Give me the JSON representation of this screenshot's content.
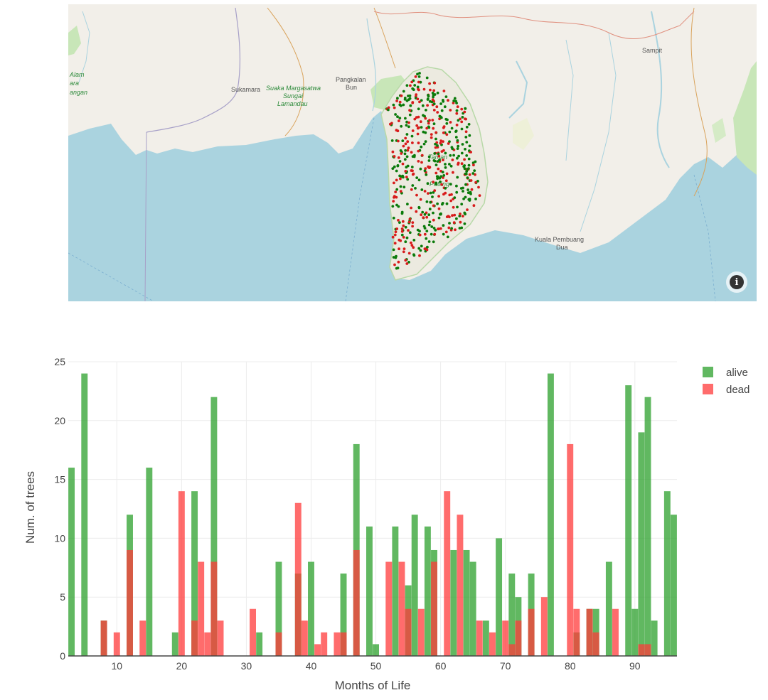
{
  "map": {
    "place_labels": [
      "Sukamara",
      "Pangkalan",
      "Bun",
      "Sampit",
      "Kuala Pembuang",
      "Dua",
      "Suaka Margasatwa",
      "Sungai",
      "Lamandau",
      "Alam",
      "ara",
      "angan",
      "Taman",
      "Putting"
    ],
    "info_icon": "info-icon",
    "point_colors": {
      "alive": "#0a7a0a",
      "dead": "#d81b1b"
    }
  },
  "chart_data": {
    "type": "bar",
    "barmode": "overlay",
    "xlabel": "Months of Life",
    "ylabel": "Num. of trees",
    "xlim": [
      2.5,
      96.5
    ],
    "ylim": [
      0,
      25
    ],
    "xticks": [
      10,
      20,
      30,
      40,
      50,
      60,
      70,
      80,
      90
    ],
    "yticks": [
      0,
      5,
      10,
      15,
      20,
      25
    ],
    "grid": true,
    "legend_position": "top-right",
    "series": [
      {
        "name": "alive",
        "color": "#2ca02c",
        "x": [
          3,
          5,
          8,
          12,
          15,
          19,
          22,
          25,
          32,
          35,
          38,
          40,
          45,
          47,
          49,
          50,
          53,
          55,
          56,
          58,
          59,
          62,
          64,
          65,
          67,
          69,
          71,
          72,
          74,
          77,
          81,
          83,
          84,
          86,
          88,
          89,
          90,
          91,
          92,
          93,
          95,
          96
        ],
        "values": [
          16,
          24,
          3,
          12,
          16,
          2,
          14,
          22,
          2,
          8,
          7,
          8,
          7,
          18,
          11,
          1,
          11,
          6,
          12,
          11,
          9,
          9,
          9,
          8,
          3,
          10,
          7,
          5,
          7,
          24,
          2,
          4,
          4,
          8,
          0,
          23,
          4,
          19,
          22,
          3,
          14,
          12
        ]
      },
      {
        "name": "dead",
        "color": "#ff3b3b",
        "x": [
          8,
          10,
          12,
          14,
          20,
          22,
          23,
          24,
          25,
          26,
          31,
          35,
          38,
          39,
          41,
          42,
          44,
          45,
          47,
          52,
          54,
          55,
          57,
          59,
          61,
          63,
          66,
          68,
          70,
          71,
          72,
          74,
          76,
          80,
          81,
          83,
          84,
          87,
          91,
          92
        ],
        "values": [
          3,
          2,
          9,
          3,
          14,
          3,
          8,
          2,
          8,
          3,
          4,
          2,
          13,
          3,
          1,
          2,
          2,
          2,
          9,
          8,
          8,
          4,
          4,
          8,
          14,
          12,
          3,
          2,
          3,
          1,
          3,
          4,
          5,
          18,
          4,
          4,
          2,
          4,
          1,
          1
        ]
      }
    ]
  }
}
